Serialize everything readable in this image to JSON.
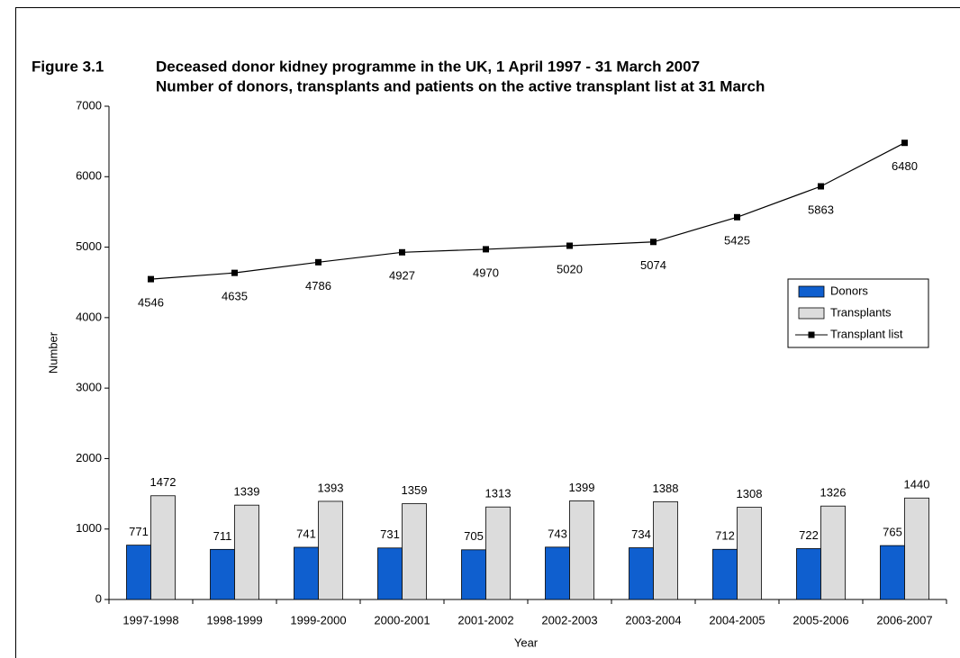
{
  "chart_data": {
    "type": "bar",
    "figure_label": "Figure 3.1",
    "title": "Deceased donor kidney programme in the UK, 1 April 1997 - 31 March 2007",
    "subtitle": "Number of donors, transplants and patients on the active transplant list at 31 March",
    "x_label": "Year",
    "y_label": "Number",
    "categories": [
      "1997-1998",
      "1998-1999",
      "1999-2000",
      "2000-2001",
      "2001-2002",
      "2002-2003",
      "2003-2004",
      "2004-2005",
      "2005-2006",
      "2006-2007"
    ],
    "series": [
      {
        "name": "Donors",
        "type": "bar",
        "color": "#0f5fcf",
        "values": [
          771,
          711,
          741,
          731,
          705,
          743,
          734,
          712,
          722,
          765
        ]
      },
      {
        "name": "Transplants",
        "type": "bar",
        "color": "#dcdcdc",
        "values": [
          1472,
          1339,
          1393,
          1359,
          1313,
          1399,
          1388,
          1308,
          1326,
          1440
        ]
      },
      {
        "name": "Transplant list",
        "type": "line",
        "color": "#000000",
        "values": [
          4546,
          4635,
          4786,
          4927,
          4970,
          5020,
          5074,
          5425,
          5863,
          6480
        ]
      }
    ],
    "ylim": [
      0,
      7000
    ],
    "yticks": [
      0,
      1000,
      2000,
      3000,
      4000,
      5000,
      6000,
      7000
    ],
    "grid": false,
    "legend": "right"
  }
}
